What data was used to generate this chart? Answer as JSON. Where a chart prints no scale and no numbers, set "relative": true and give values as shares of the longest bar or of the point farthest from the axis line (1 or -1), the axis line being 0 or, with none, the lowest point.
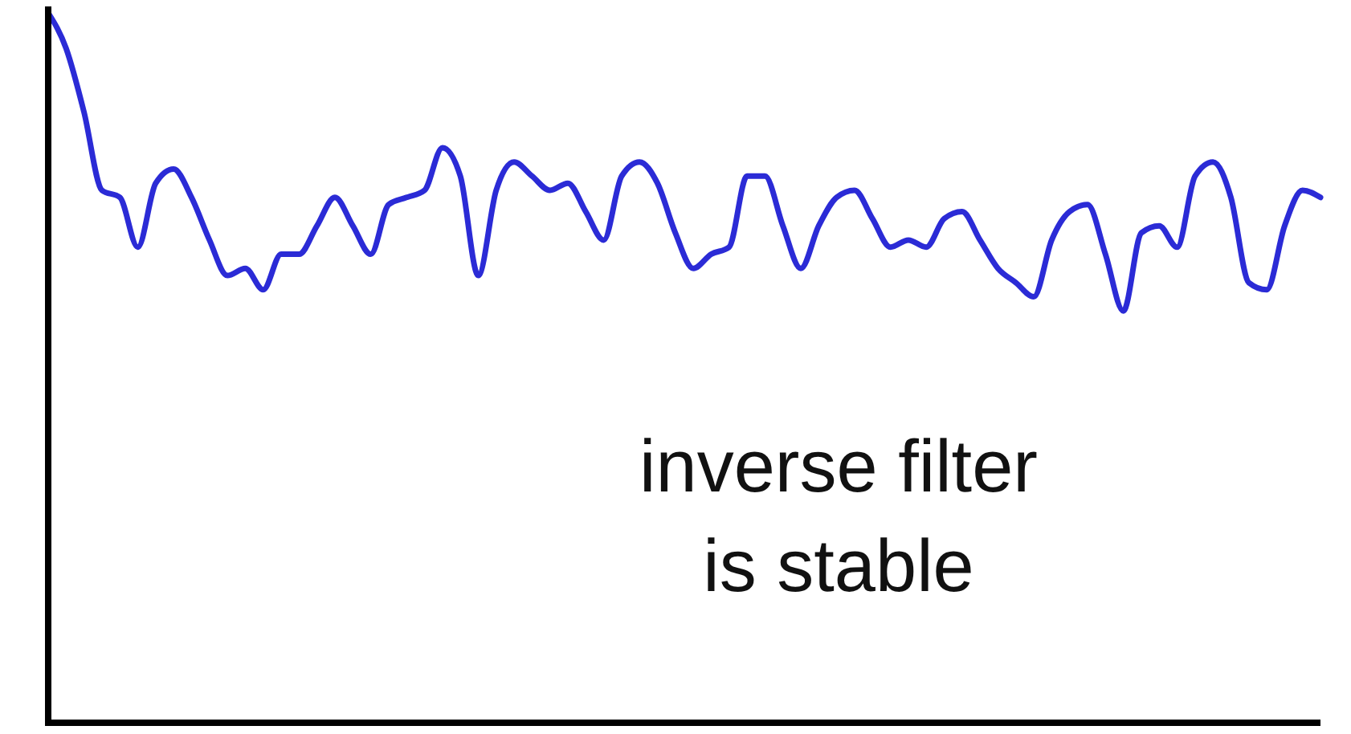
{
  "chart_data": {
    "type": "line",
    "relative": true,
    "annotations": [
      "inverse filter\nis stable"
    ],
    "marker": "none",
    "line_style": "solid",
    "categories": [
      null,
      null,
      null,
      null,
      null,
      null,
      null,
      null,
      null,
      null,
      null,
      null,
      null,
      null,
      null,
      null,
      null,
      null,
      null,
      null,
      null,
      null,
      null,
      null,
      null,
      null,
      null,
      null,
      null,
      null,
      null,
      null,
      null,
      null,
      null,
      null,
      null,
      null,
      null,
      null,
      null,
      null,
      null,
      null,
      null,
      null,
      null,
      null,
      null,
      null,
      null,
      null,
      null,
      null,
      null,
      null,
      null,
      null,
      null,
      null,
      null,
      null,
      null,
      null,
      null,
      null,
      null,
      null,
      null,
      null,
      null,
      null
    ],
    "series": [
      {
        "color": "#2b2bd6",
        "values": [
          1.0,
          0.95,
          0.86,
          0.75,
          0.74,
          0.67,
          0.76,
          0.78,
          0.74,
          0.68,
          0.63,
          0.64,
          0.61,
          0.66,
          0.66,
          0.7,
          0.74,
          0.7,
          0.66,
          0.73,
          0.74,
          0.75,
          0.81,
          0.77,
          0.63,
          0.75,
          0.79,
          0.77,
          0.75,
          0.76,
          0.72,
          0.68,
          0.77,
          0.79,
          0.76,
          0.69,
          0.64,
          0.66,
          0.67,
          0.77,
          0.77,
          0.7,
          0.64,
          0.7,
          0.74,
          0.75,
          0.71,
          0.67,
          0.68,
          0.67,
          0.71,
          0.72,
          0.68,
          0.64,
          0.62,
          0.6,
          0.68,
          0.72,
          0.73,
          0.66,
          0.58,
          0.69,
          0.7,
          0.67,
          0.77,
          0.79,
          0.74,
          0.62,
          0.61,
          0.7,
          0.75,
          0.74
        ]
      }
    ]
  }
}
